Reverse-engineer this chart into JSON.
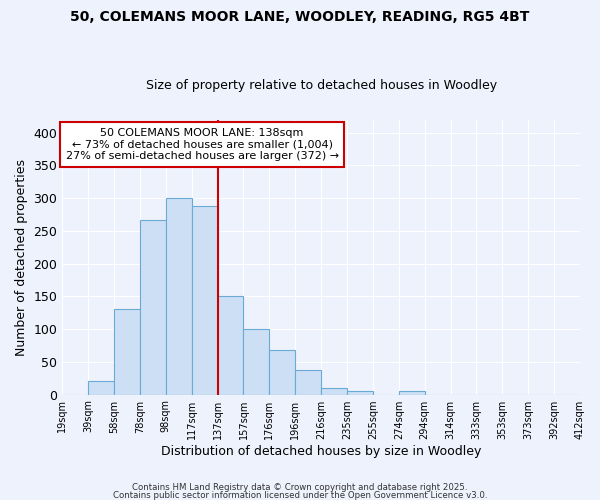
{
  "title": "50, COLEMANS MOOR LANE, WOODLEY, READING, RG5 4BT",
  "subtitle": "Size of property relative to detached houses in Woodley",
  "xlabel": "Distribution of detached houses by size in Woodley",
  "ylabel": "Number of detached properties",
  "bar_heights": [
    0,
    20,
    130,
    267,
    300,
    288,
    150,
    100,
    68,
    37,
    10,
    5,
    0,
    5,
    0,
    0,
    0,
    0,
    0,
    0
  ],
  "tick_labels": [
    "19sqm",
    "39sqm",
    "58sqm",
    "78sqm",
    "98sqm",
    "117sqm",
    "137sqm",
    "157sqm",
    "176sqm",
    "196sqm",
    "216sqm",
    "235sqm",
    "255sqm",
    "274sqm",
    "294sqm",
    "314sqm",
    "333sqm",
    "353sqm",
    "373sqm",
    "392sqm",
    "412sqm"
  ],
  "bar_color": "#ccdff5",
  "bar_edge_color": "#6aaad4",
  "vline_color": "#cc0000",
  "annotation_title": "50 COLEMANS MOOR LANE: 138sqm",
  "annotation_line1": "← 73% of detached houses are smaller (1,004)",
  "annotation_line2": "27% of semi-detached houses are larger (372) →",
  "annotation_box_color": "white",
  "annotation_box_edge": "#cc0000",
  "ylim": [
    0,
    420
  ],
  "yticks": [
    0,
    50,
    100,
    150,
    200,
    250,
    300,
    350,
    400
  ],
  "bg_color": "#eef2fc",
  "grid_color": "#ffffff",
  "footer1": "Contains HM Land Registry data © Crown copyright and database right 2025.",
  "footer2": "Contains public sector information licensed under the Open Government Licence v3.0."
}
